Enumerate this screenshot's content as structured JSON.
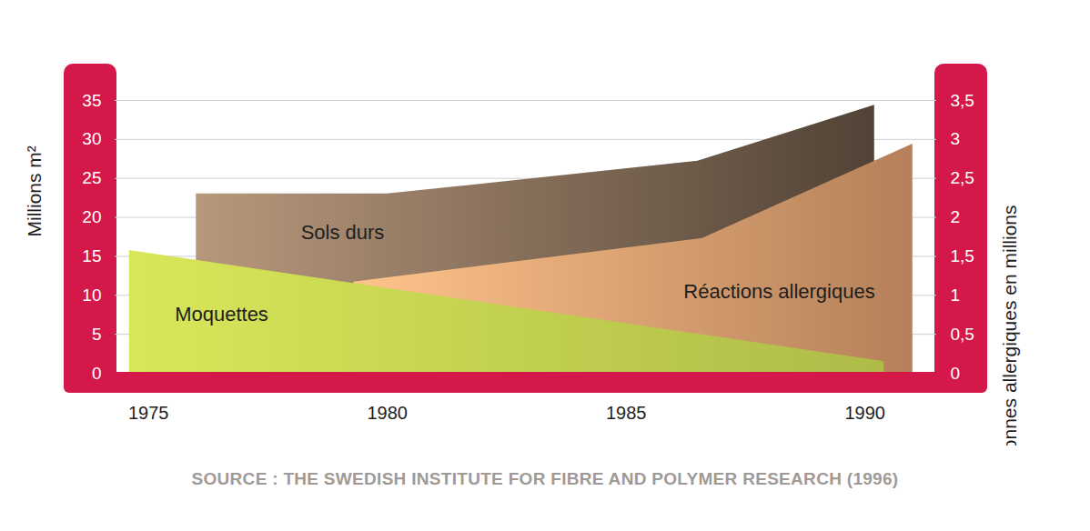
{
  "chart_data": {
    "type": "area",
    "caption": "SOURCE : THE SWEDISH INSTITUTE FOR FIBRE AND POLYMER RESEARCH (1996)",
    "y_label": "Millions m²",
    "y2_label": "Personnes allergiques en millions",
    "xlim": [
      1974.3,
      1991.5
    ],
    "xticks": [
      1975,
      1980,
      1985,
      1990
    ],
    "ylim": [
      0,
      35
    ],
    "yticks": [
      0,
      5,
      10,
      15,
      20,
      25,
      30,
      35
    ],
    "y2lim": [
      0,
      3.5
    ],
    "y2ticks": [
      0,
      {
        "value": 0.5,
        "label": "0,5"
      },
      1,
      {
        "value": 1.5,
        "label": "1,5"
      },
      2,
      {
        "value": 2.5,
        "label": "2,5"
      },
      3,
      {
        "value": 3.5,
        "label": "3,5"
      }
    ],
    "grid": true,
    "series": [
      {
        "name": "Sols durs",
        "color": "#8a725d",
        "x": [
          1976,
          1980,
          1986.5,
          1990.2
        ],
        "values": [
          23,
          23,
          27.2,
          34.4
        ]
      },
      {
        "name": "Réactions allergiques",
        "color": "#e8a474",
        "axis": "y2",
        "x": [
          1979.3,
          1986.6,
          1991
        ],
        "values": [
          1.17,
          1.73,
          2.94
        ]
      },
      {
        "name": "Moquettes",
        "color": "#c2d050",
        "x": [
          1974.6,
          1990.4
        ],
        "values": [
          15.75,
          1.5
        ]
      }
    ]
  }
}
